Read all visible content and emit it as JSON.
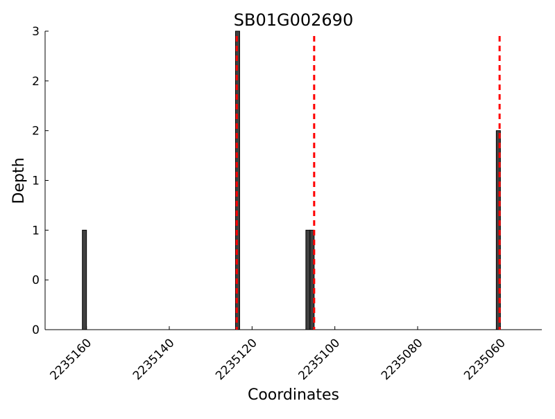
{
  "chart_data": {
    "type": "bar",
    "title": "SB01G002690",
    "xlabel": "Coordinates",
    "ylabel": "Depth",
    "xlim": [
      2235170,
      2235050
    ],
    "ylim": [
      0,
      3
    ],
    "x_reversed": true,
    "grid": false,
    "x_ticks": [
      2235160,
      2235140,
      2235120,
      2235100,
      2235080,
      2235060
    ],
    "y_ticks": [
      0,
      0.5,
      1,
      1.5,
      2,
      2.5,
      3
    ],
    "y_tick_labels": [
      "0",
      "0",
      "1",
      "1",
      "2",
      "2",
      "3"
    ],
    "bars": [
      {
        "x": 2235160,
        "value": 1
      },
      {
        "x": 2235123,
        "value": 3
      },
      {
        "x": 2235106,
        "value": 1
      },
      {
        "x": 2235105,
        "value": 1
      },
      {
        "x": 2235060,
        "value": 2
      }
    ],
    "markers": [
      2235123.7,
      2235105,
      2235060.2
    ],
    "bar_color": "#404040",
    "marker_color": "#ff0000"
  }
}
